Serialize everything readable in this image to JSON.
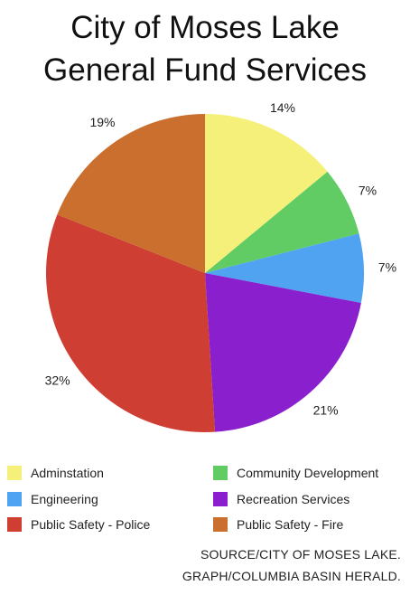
{
  "title_line_1": "City of Moses Lake",
  "title_line_2": "General Fund Services",
  "source_line_1": "SOURCE/CITY OF MOSES LAKE.",
  "source_line_2": "GRAPH/COLUMBIA BASIN HERALD.",
  "chart_data": {
    "type": "pie",
    "title": "City of Moses Lake General Fund Services",
    "legend_position": "bottom",
    "slices": [
      {
        "label": "Adminstation",
        "value": 14,
        "value_label": "14%",
        "color": "#f5f07a"
      },
      {
        "label": "Community Development",
        "value": 7,
        "value_label": "7%",
        "color": "#62cc64"
      },
      {
        "label": "Engineering",
        "value": 7,
        "value_label": "7%",
        "color": "#4fa3f0"
      },
      {
        "label": "Recreation Services",
        "value": 21,
        "value_label": "21%",
        "color": "#8a1fce"
      },
      {
        "label": "Public Safety - Police",
        "value": 32,
        "value_label": "32%",
        "color": "#cf3e33"
      },
      {
        "label": "Public Safety - Fire",
        "value": 19,
        "value_label": "19%",
        "color": "#ca6f2e"
      }
    ]
  }
}
